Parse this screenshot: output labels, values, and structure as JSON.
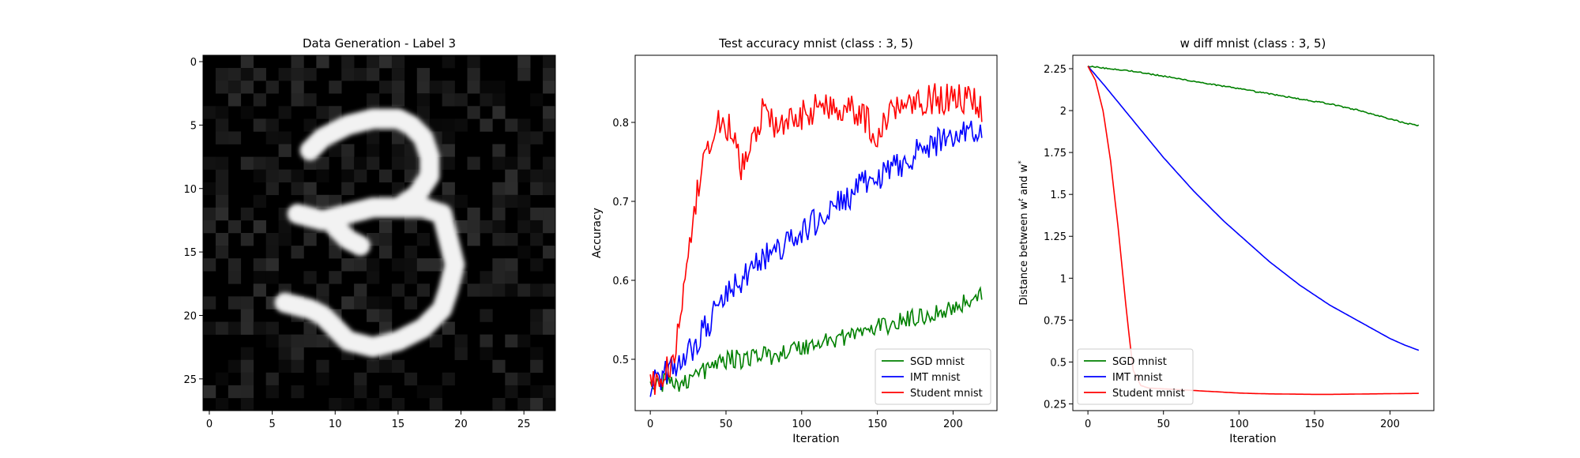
{
  "chart_data": [
    {
      "type": "heatmap",
      "title": "Data Generation - Label 3",
      "xlabel": "",
      "ylabel": "",
      "colormap": "gray",
      "xlim": [
        -0.5,
        27.5
      ],
      "ylim": [
        27.5,
        -0.5
      ],
      "xticks": [
        0,
        5,
        10,
        15,
        20,
        25
      ],
      "yticks": [
        0,
        5,
        10,
        15,
        20,
        25
      ],
      "grid": false,
      "strokes": [
        {
          "name": "upper-arc",
          "points": [
            [
              8,
              7
            ],
            [
              9,
              6
            ],
            [
              11,
              5
            ],
            [
              13,
              4.5
            ],
            [
              15,
              4.5
            ],
            [
              16,
              5
            ],
            [
              17,
              6
            ],
            [
              17.5,
              7.5
            ],
            [
              17.5,
              9
            ],
            [
              16.5,
              10.5
            ],
            [
              15,
              11.5
            ]
          ]
        },
        {
          "name": "middle-bar",
          "points": [
            [
              7,
              12
            ],
            [
              9,
              12.5
            ],
            [
              11,
              12
            ],
            [
              13,
              11.5
            ],
            [
              15,
              11.5
            ],
            [
              17,
              11.5
            ],
            [
              18.5,
              12
            ]
          ]
        },
        {
          "name": "middle-left",
          "points": [
            [
              10,
              13
            ],
            [
              11,
              14
            ],
            [
              12,
              14.5
            ]
          ]
        },
        {
          "name": "lower-arc",
          "points": [
            [
              18.5,
              12
            ],
            [
              19,
              14
            ],
            [
              19.5,
              16
            ],
            [
              19,
              18
            ],
            [
              18.5,
              19.5
            ],
            [
              17,
              21
            ],
            [
              15,
              22
            ],
            [
              13,
              22.5
            ],
            [
              11,
              22
            ],
            [
              10,
              21
            ],
            [
              9,
              20
            ]
          ]
        },
        {
          "name": "lower-tail",
          "points": [
            [
              6,
              19
            ],
            [
              8,
              19.5
            ],
            [
              9,
              20
            ]
          ]
        }
      ]
    },
    {
      "type": "line",
      "title": "Test accuracy mnist (class : 3, 5)",
      "xlabel": "Iteration",
      "ylabel": "Accuracy",
      "xlim": [
        -10,
        229
      ],
      "ylim": [
        0.435,
        0.885
      ],
      "xticks": [
        0,
        50,
        100,
        150,
        200
      ],
      "yticks": [
        0.5,
        0.6,
        0.7,
        0.8
      ],
      "legend_position": "lower-right",
      "grid": false,
      "series": [
        {
          "name": "SGD mnist",
          "color": "#008000",
          "noise": 0.012,
          "points": [
            [
              0,
              0.47
            ],
            [
              10,
              0.47
            ],
            [
              20,
              0.47
            ],
            [
              30,
              0.48
            ],
            [
              40,
              0.49
            ],
            [
              50,
              0.5
            ],
            [
              60,
              0.5
            ],
            [
              70,
              0.505
            ],
            [
              80,
              0.505
            ],
            [
              90,
              0.51
            ],
            [
              100,
              0.515
            ],
            [
              110,
              0.52
            ],
            [
              120,
              0.525
            ],
            [
              130,
              0.53
            ],
            [
              140,
              0.535
            ],
            [
              150,
              0.54
            ],
            [
              160,
              0.545
            ],
            [
              170,
              0.55
            ],
            [
              180,
              0.555
            ],
            [
              190,
              0.56
            ],
            [
              200,
              0.565
            ],
            [
              210,
              0.575
            ],
            [
              219,
              0.58
            ]
          ]
        },
        {
          "name": "IMT mnist",
          "color": "#0000ff",
          "noise": 0.018,
          "points": [
            [
              0,
              0.47
            ],
            [
              10,
              0.48
            ],
            [
              20,
              0.5
            ],
            [
              30,
              0.52
            ],
            [
              40,
              0.55
            ],
            [
              50,
              0.58
            ],
            [
              60,
              0.6
            ],
            [
              70,
              0.62
            ],
            [
              80,
              0.635
            ],
            [
              90,
              0.645
            ],
            [
              100,
              0.66
            ],
            [
              110,
              0.675
            ],
            [
              120,
              0.69
            ],
            [
              130,
              0.705
            ],
            [
              140,
              0.72
            ],
            [
              150,
              0.73
            ],
            [
              160,
              0.74
            ],
            [
              170,
              0.755
            ],
            [
              180,
              0.765
            ],
            [
              190,
              0.775
            ],
            [
              200,
              0.785
            ],
            [
              210,
              0.79
            ],
            [
              219,
              0.79
            ]
          ]
        },
        {
          "name": "Student mnist",
          "color": "#ff0000",
          "noise": 0.02,
          "points": [
            [
              0,
              0.47
            ],
            [
              5,
              0.47
            ],
            [
              10,
              0.48
            ],
            [
              15,
              0.5
            ],
            [
              20,
              0.55
            ],
            [
              25,
              0.62
            ],
            [
              30,
              0.7
            ],
            [
              35,
              0.74
            ],
            [
              40,
              0.77
            ],
            [
              45,
              0.8
            ],
            [
              50,
              0.8
            ],
            [
              55,
              0.78
            ],
            [
              60,
              0.74
            ],
            [
              65,
              0.76
            ],
            [
              70,
              0.79
            ],
            [
              75,
              0.82
            ],
            [
              80,
              0.8
            ],
            [
              85,
              0.79
            ],
            [
              90,
              0.8
            ],
            [
              95,
              0.8
            ],
            [
              100,
              0.81
            ],
            [
              110,
              0.82
            ],
            [
              120,
              0.82
            ],
            [
              130,
              0.82
            ],
            [
              140,
              0.81
            ],
            [
              150,
              0.78
            ],
            [
              155,
              0.8
            ],
            [
              160,
              0.82
            ],
            [
              170,
              0.83
            ],
            [
              180,
              0.83
            ],
            [
              190,
              0.83
            ],
            [
              200,
              0.83
            ],
            [
              210,
              0.83
            ],
            [
              219,
              0.82
            ]
          ]
        }
      ]
    },
    {
      "type": "line",
      "title": "w diff mnist (class : 3, 5)",
      "xlabel": "Iteration",
      "ylabel": "Distance between w^t and w^*",
      "xlim": [
        -10,
        229
      ],
      "ylim": [
        0.21,
        2.33
      ],
      "xticks": [
        0,
        50,
        100,
        150,
        200
      ],
      "yticks": [
        0.25,
        0.5,
        0.75,
        1.0,
        1.25,
        1.5,
        1.75,
        2.0,
        2.25
      ],
      "legend_position": "lower-left",
      "grid": false,
      "series": [
        {
          "name": "SGD mnist",
          "color": "#008000",
          "noise": 0.004,
          "points": [
            [
              0,
              2.265
            ],
            [
              10,
              2.255
            ],
            [
              20,
              2.245
            ],
            [
              30,
              2.235
            ],
            [
              40,
              2.22
            ],
            [
              50,
              2.205
            ],
            [
              60,
              2.19
            ],
            [
              70,
              2.175
            ],
            [
              80,
              2.16
            ],
            [
              90,
              2.145
            ],
            [
              100,
              2.13
            ],
            [
              110,
              2.115
            ],
            [
              120,
              2.1
            ],
            [
              130,
              2.085
            ],
            [
              140,
              2.07
            ],
            [
              150,
              2.055
            ],
            [
              160,
              2.04
            ],
            [
              170,
              2.02
            ],
            [
              180,
              2.0
            ],
            [
              190,
              1.975
            ],
            [
              200,
              1.95
            ],
            [
              210,
              1.925
            ],
            [
              219,
              1.91
            ]
          ]
        },
        {
          "name": "IMT mnist",
          "color": "#0000ff",
          "noise": 0,
          "points": [
            [
              0,
              2.265
            ],
            [
              10,
              2.16
            ],
            [
              20,
              2.05
            ],
            [
              30,
              1.94
            ],
            [
              40,
              1.83
            ],
            [
              50,
              1.72
            ],
            [
              60,
              1.62
            ],
            [
              70,
              1.52
            ],
            [
              80,
              1.43
            ],
            [
              90,
              1.34
            ],
            [
              100,
              1.26
            ],
            [
              110,
              1.18
            ],
            [
              120,
              1.1
            ],
            [
              130,
              1.03
            ],
            [
              140,
              0.96
            ],
            [
              150,
              0.9
            ],
            [
              160,
              0.84
            ],
            [
              170,
              0.79
            ],
            [
              180,
              0.74
            ],
            [
              190,
              0.69
            ],
            [
              200,
              0.64
            ],
            [
              210,
              0.6
            ],
            [
              219,
              0.57
            ]
          ]
        },
        {
          "name": "Student mnist",
          "color": "#ff0000",
          "noise": 0,
          "points": [
            [
              0,
              2.265
            ],
            [
              5,
              2.18
            ],
            [
              10,
              2.0
            ],
            [
              15,
              1.7
            ],
            [
              20,
              1.3
            ],
            [
              25,
              0.85
            ],
            [
              28,
              0.6
            ],
            [
              30,
              0.45
            ],
            [
              35,
              0.36
            ],
            [
              40,
              0.345
            ],
            [
              50,
              0.34
            ],
            [
              60,
              0.335
            ],
            [
              70,
              0.33
            ],
            [
              80,
              0.325
            ],
            [
              90,
              0.32
            ],
            [
              100,
              0.315
            ],
            [
              110,
              0.312
            ],
            [
              120,
              0.31
            ],
            [
              130,
              0.309
            ],
            [
              140,
              0.308
            ],
            [
              150,
              0.307
            ],
            [
              160,
              0.307
            ],
            [
              170,
              0.308
            ],
            [
              180,
              0.309
            ],
            [
              190,
              0.31
            ],
            [
              200,
              0.311
            ],
            [
              210,
              0.312
            ],
            [
              219,
              0.313
            ]
          ]
        }
      ]
    }
  ]
}
